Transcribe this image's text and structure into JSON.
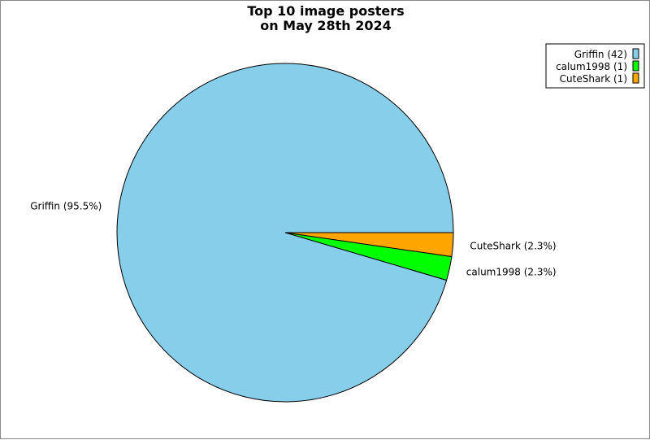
{
  "chart_data": {
    "type": "pie",
    "title": [
      "Top 10 image posters",
      "on May 28th 2024"
    ],
    "slices": [
      {
        "name": "CuteShark",
        "value": 1,
        "percent_label": "CuteShark (2.3%)",
        "legend_label": "CuteShark (1)",
        "color": "#ffa500"
      },
      {
        "name": "calum1998",
        "value": 1,
        "percent_label": "calum1998 (2.3%)",
        "legend_label": "calum1998 (1)",
        "color": "#00ff00"
      },
      {
        "name": "Griffin",
        "value": 42,
        "percent_label": "Griffin (95.5%)",
        "legend_label": "Griffin (42)",
        "color": "#87ceeb"
      }
    ],
    "legend_order": [
      2,
      1,
      0
    ],
    "legend_placement": "top-right"
  }
}
